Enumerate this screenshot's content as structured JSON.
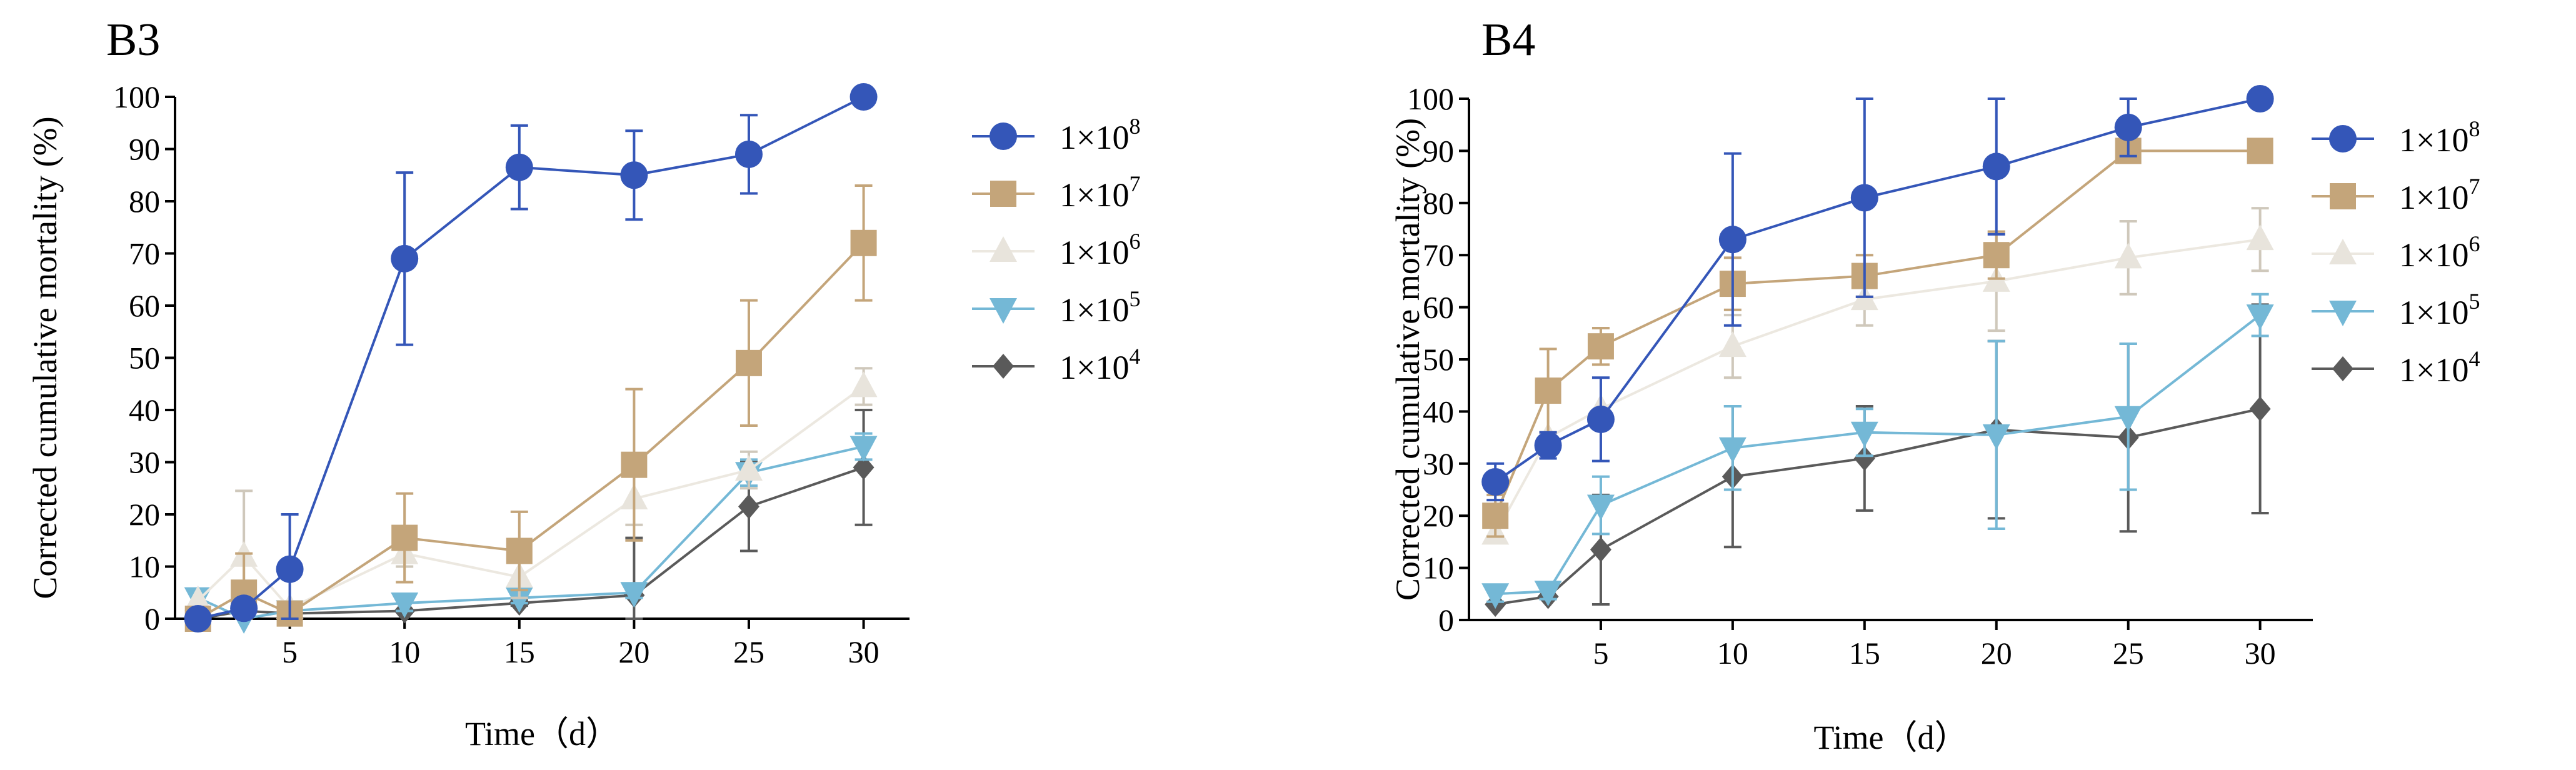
{
  "chart_data": [
    {
      "type": "line",
      "panel_label": "B3",
      "xlabel": "Time（d）",
      "ylabel": "Corrected cumulative mortality (%)",
      "xlim": [
        0,
        32
      ],
      "ylim": [
        0,
        100
      ],
      "xticks": [
        5,
        10,
        15,
        20,
        25,
        30
      ],
      "yticks": [
        0,
        10,
        20,
        30,
        40,
        50,
        60,
        70,
        80,
        90,
        100
      ],
      "legend_position": "right",
      "x": [
        1,
        3,
        5,
        10,
        15,
        20,
        25,
        30
      ],
      "series": [
        {
          "name": "1×10",
          "exponent": "8",
          "marker": "circle",
          "color": "#3456b8",
          "line_color": "#3456b8",
          "values": [
            0,
            2,
            9.5,
            69,
            86.5,
            85,
            89,
            100
          ],
          "errors": [
            0,
            0,
            10.5,
            16.5,
            8,
            8.5,
            7.5,
            0
          ]
        },
        {
          "name": "1×10",
          "exponent": "7",
          "marker": "square",
          "color": "#c4a57a",
          "line_color": "#c4a57a",
          "values": [
            0,
            5,
            1,
            15.5,
            13,
            29.5,
            49,
            72
          ],
          "errors": [
            0,
            7.5,
            0,
            8.5,
            7.5,
            14.5,
            12,
            11
          ]
        },
        {
          "name": "1×10",
          "exponent": "6",
          "marker": "triangle-up",
          "color": "#e8e4dc",
          "line_color": "#ece8e0",
          "values": [
            3.5,
            12,
            2,
            12.5,
            8,
            23,
            28.5,
            44.5
          ],
          "errors": [
            0,
            12.5,
            0,
            2.5,
            4,
            5,
            3.5,
            3.5
          ]
        },
        {
          "name": "1×10",
          "exponent": "5",
          "marker": "triangle-down",
          "color": "#74b8d6",
          "line_color": "#74b8d6",
          "values": [
            4,
            0,
            1.5,
            3,
            4,
            5,
            28,
            33
          ],
          "errors": [
            1.5,
            0,
            0,
            1.5,
            1,
            1,
            2.5,
            2.5
          ]
        },
        {
          "name": "1×10",
          "exponent": "4",
          "marker": "diamond",
          "color": "#5a5a5a",
          "line_color": "#5a5a5a",
          "values": [
            0,
            1.5,
            1,
            1.5,
            3,
            4.5,
            21.5,
            29
          ],
          "errors": [
            1.5,
            0,
            0,
            0,
            0.5,
            11,
            8.5,
            11
          ]
        }
      ]
    },
    {
      "type": "line",
      "panel_label": "B4",
      "xlabel": "Time（d）",
      "ylabel": "Corrected cumulative mortality (%)",
      "xlim": [
        0,
        32
      ],
      "ylim": [
        0,
        100
      ],
      "xticks": [
        5,
        10,
        15,
        20,
        25,
        30
      ],
      "yticks": [
        0,
        10,
        20,
        30,
        40,
        50,
        60,
        70,
        80,
        90,
        100
      ],
      "legend_position": "right",
      "x": [
        1,
        3,
        5,
        10,
        15,
        20,
        25,
        30
      ],
      "series": [
        {
          "name": "1×10",
          "exponent": "8",
          "marker": "circle",
          "color": "#3456b8",
          "line_color": "#3456b8",
          "values": [
            26.5,
            33.5,
            38.5,
            73,
            81,
            87,
            94.5,
            100
          ],
          "errors": [
            3.5,
            2.5,
            8,
            16.5,
            19,
            13,
            5.5,
            0
          ]
        },
        {
          "name": "1×10",
          "exponent": "7",
          "marker": "square",
          "color": "#c4a57a",
          "line_color": "#c4a57a",
          "values": [
            20,
            44,
            52.5,
            64.5,
            66,
            70,
            90,
            90
          ],
          "errors": [
            4,
            8,
            3.5,
            5,
            4,
            4.5,
            0,
            0
          ]
        },
        {
          "name": "1×10",
          "exponent": "6",
          "marker": "triangle-up",
          "color": "#e8e4dc",
          "line_color": "#ece8e0",
          "values": [
            16.5,
            35,
            40.5,
            52.5,
            61.5,
            65,
            69.5,
            73
          ],
          "errors": [
            0,
            0,
            0,
            6,
            5,
            9.5,
            7,
            6
          ]
        },
        {
          "name": "1×10",
          "exponent": "5",
          "marker": "triangle-down",
          "color": "#74b8d6",
          "line_color": "#74b8d6",
          "values": [
            5,
            5.5,
            22,
            33,
            36,
            35.5,
            39,
            58.5
          ],
          "errors": [
            1.5,
            1.5,
            5.5,
            8,
            4.5,
            18,
            14,
            4
          ]
        },
        {
          "name": "1×10",
          "exponent": "4",
          "marker": "diamond",
          "color": "#5a5a5a",
          "line_color": "#5a5a5a",
          "values": [
            3,
            4.5,
            13.5,
            27.5,
            31,
            36.5,
            35,
            40.5
          ],
          "errors": [
            0,
            0,
            10.5,
            13.5,
            10,
            17,
            18,
            20
          ]
        }
      ]
    }
  ]
}
